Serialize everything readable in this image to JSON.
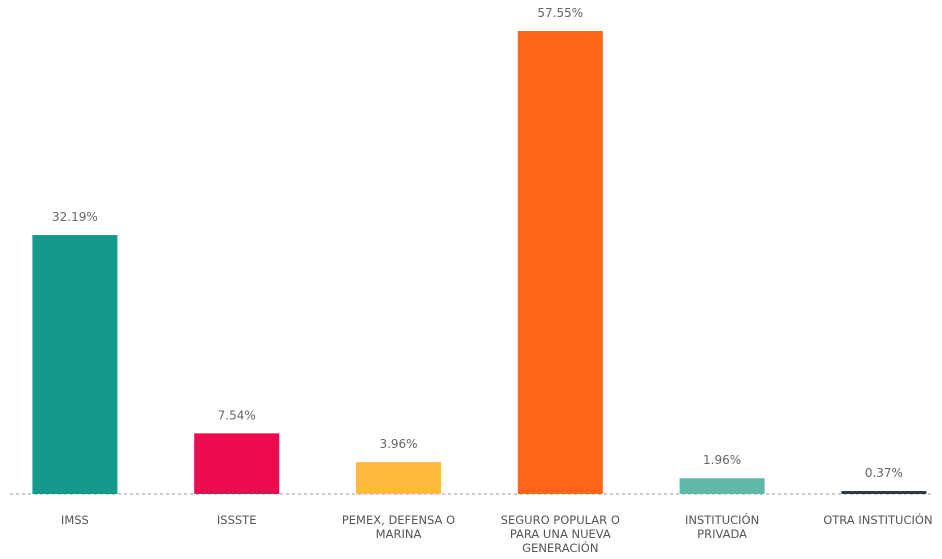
{
  "chart_data": {
    "type": "bar",
    "categories": [
      "IMSS",
      "ISSSTE",
      "PEMEX, DEFENSA O MARINA",
      "SEGURO POPULAR O PARA UNA NUEVA GENERACIÓN",
      "INSTITUCIÓN PRIVADA",
      "OTRA INSTITUCIÓN"
    ],
    "values": [
      32.19,
      7.54,
      3.96,
      57.55,
      1.96,
      0.37
    ],
    "value_labels": [
      "32.19%",
      "7.54%",
      "3.96%",
      "57.55%",
      "1.96%",
      "0.37%"
    ],
    "colors": [
      "#139a8a",
      "#ee0a4f",
      "#fdba3d",
      "#ff6619",
      "#62b8a8",
      "#2e3a40"
    ]
  }
}
